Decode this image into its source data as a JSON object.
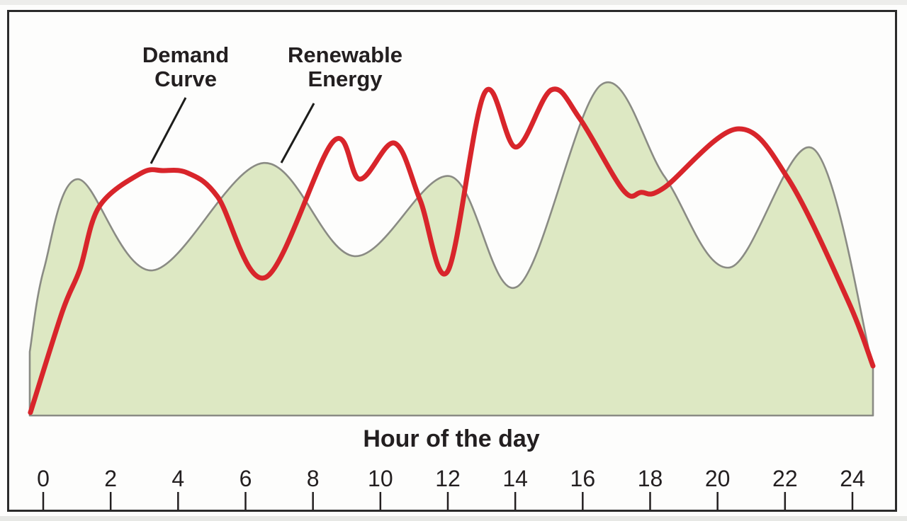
{
  "figure": {
    "background": "#ffffff",
    "frame_color": "#2b2b2b",
    "text_color": "#231f20"
  },
  "chart_data": {
    "type": "area",
    "title": "",
    "xlabel": "Hour of the day",
    "ylabel": "",
    "x_ticks": [
      "0",
      "2",
      "4",
      "6",
      "8",
      "10",
      "12",
      "14",
      "16",
      "18",
      "20",
      "22",
      "24"
    ],
    "x_tick_step_hours": 2,
    "x_range_hours": [
      -0.4,
      24.6
    ],
    "y_range_relative": [
      0,
      100
    ],
    "grid": false,
    "legend_position": "inline annotations with leader lines",
    "series": [
      {
        "name": "Renewable Energy",
        "type": "area",
        "fill": "#dde8c3",
        "stroke": "#8a8b84",
        "points_hour_value": [
          [
            -0.4,
            19.3
          ],
          [
            0.02,
            44.3
          ],
          [
            1.03,
            71.5
          ],
          [
            3.24,
            43.9
          ],
          [
            6.54,
            76.4
          ],
          [
            9.23,
            48.2
          ],
          [
            12.06,
            72.4
          ],
          [
            14.06,
            39.0
          ],
          [
            16.54,
            100.0
          ],
          [
            18.43,
            72.2
          ],
          [
            20.37,
            44.8
          ],
          [
            22.84,
            80.7
          ],
          [
            24.61,
            14.3
          ]
        ]
      },
      {
        "name": "Demand Curve",
        "type": "line",
        "stroke": "#d8252b",
        "points_hour_value": [
          [
            -0.38,
            0.9
          ],
          [
            0.57,
            31.5
          ],
          [
            1.09,
            44.3
          ],
          [
            1.66,
            63.2
          ],
          [
            2.9,
            73.3
          ],
          [
            3.55,
            74.1
          ],
          [
            4.3,
            73.3
          ],
          [
            5.17,
            66.2
          ],
          [
            6.6,
            41.8
          ],
          [
            8.6,
            82.9
          ],
          [
            9.39,
            71.5
          ],
          [
            10.42,
            82.4
          ],
          [
            11.18,
            65.1
          ],
          [
            12.0,
            43.7
          ],
          [
            13.09,
            97.6
          ],
          [
            14.02,
            81.2
          ],
          [
            15.07,
            98.5
          ],
          [
            15.91,
            89.9
          ],
          [
            17.2,
            68.2
          ],
          [
            17.74,
            67.5
          ],
          [
            18.4,
            68.8
          ],
          [
            20.58,
            86.7
          ],
          [
            22.09,
            71.7
          ],
          [
            23.87,
            34.7
          ],
          [
            24.61,
            15.0
          ]
        ]
      }
    ],
    "annotations": [
      {
        "id": "demand",
        "text": "Demand\nCurve"
      },
      {
        "id": "renewable",
        "text": "Renewable\nEnergy"
      }
    ]
  }
}
